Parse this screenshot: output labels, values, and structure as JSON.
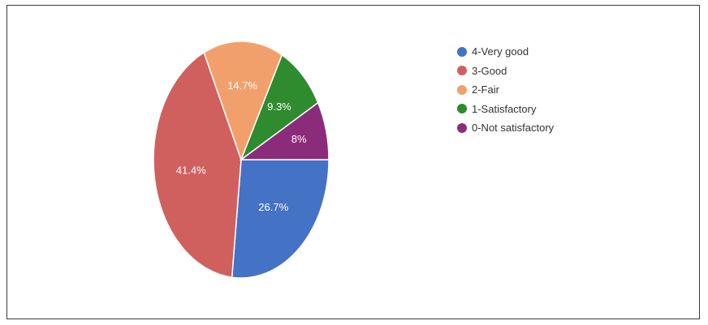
{
  "chart_data": {
    "type": "pie",
    "title": "",
    "legend_position": "right",
    "slices": [
      {
        "label": "4-Very good",
        "value": 26.7,
        "display": "26.7%",
        "color": "#4472c4"
      },
      {
        "label": "3-Good",
        "value": 41.4,
        "display": "41.4%",
        "color": "#d0605e"
      },
      {
        "label": "2-Fair",
        "value": 14.7,
        "display": "14.7%",
        "color": "#f2a06b"
      },
      {
        "label": "1-Satisfactory",
        "value": 9.3,
        "display": "9.3%",
        "color": "#2e8b2e"
      },
      {
        "label": "0-Not satisfactory",
        "value": 8,
        "display": "8%",
        "color": "#8b2c7b"
      }
    ]
  }
}
